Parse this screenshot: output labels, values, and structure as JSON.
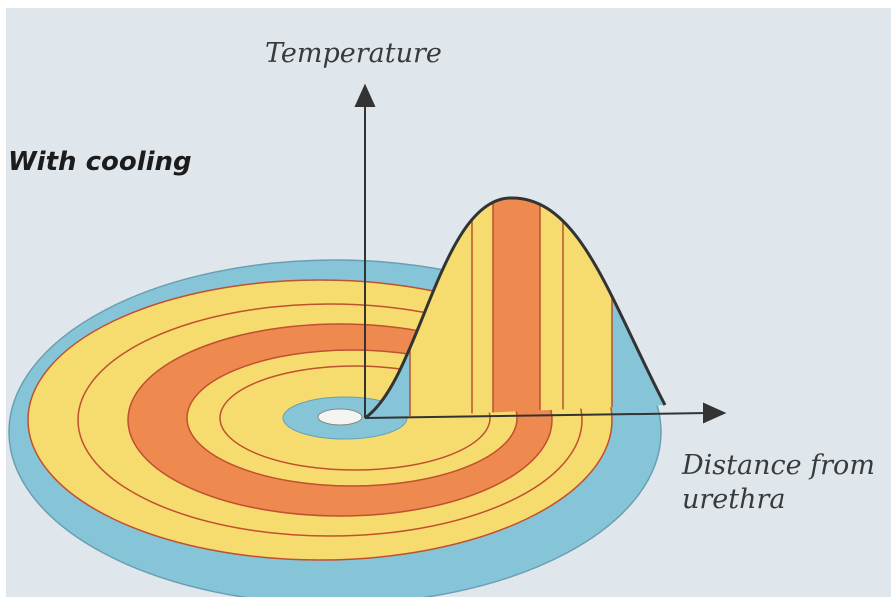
{
  "title": "With cooling",
  "y_axis_label": "Temperature",
  "x_axis_label_line1": "Distance from",
  "x_axis_label_line2": "urethra"
}
